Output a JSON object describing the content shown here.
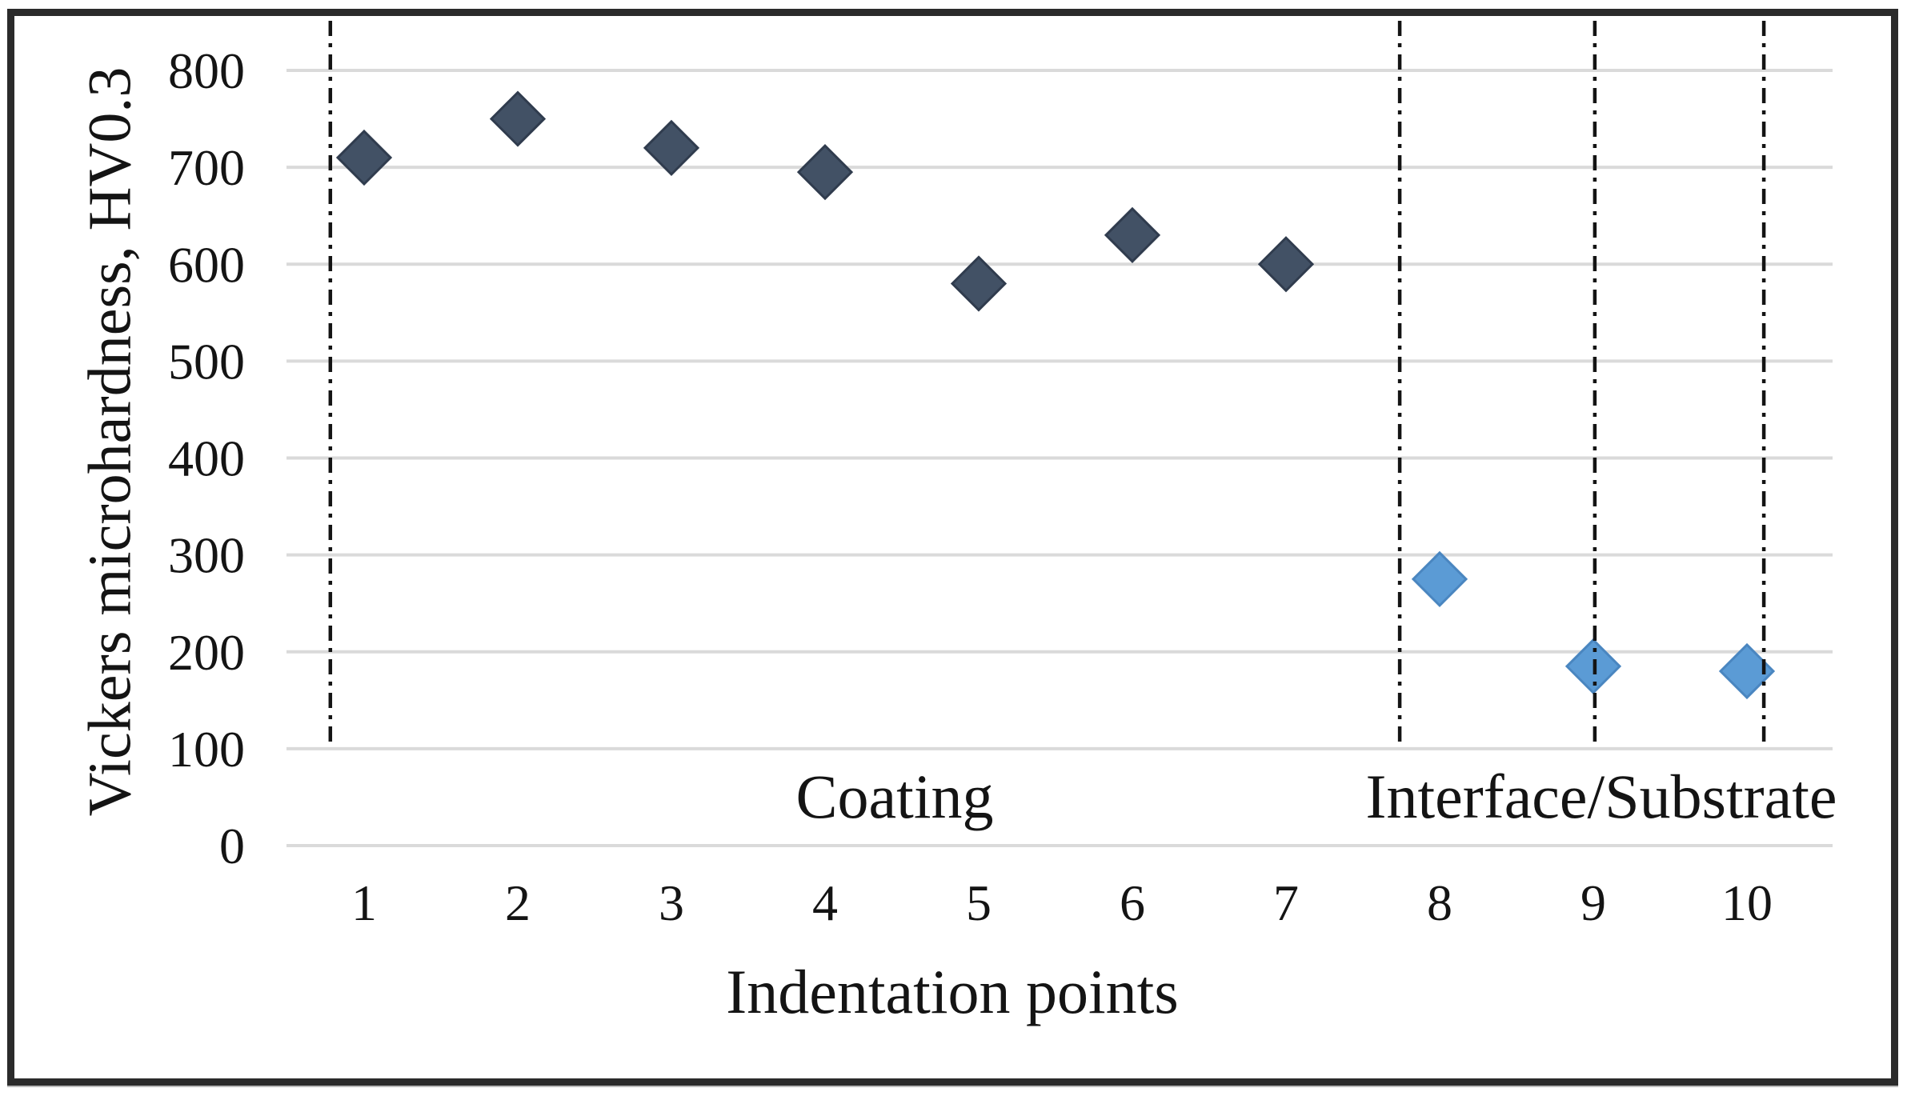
{
  "figure": {
    "background": "#FFFFFF",
    "border_color": "#2B2B2B"
  },
  "chart_data": {
    "type": "scatter",
    "marker": "diamond",
    "title": "",
    "xlabel": "Indentation points",
    "ylabel": "Vickers microhardness, HV0.3",
    "x_ticks": [
      "1",
      "2",
      "3",
      "4",
      "5",
      "6",
      "7",
      "8",
      "9",
      "10"
    ],
    "y_ticks": [
      0,
      100,
      200,
      300,
      400,
      500,
      600,
      700,
      800
    ],
    "ylim": [
      0,
      850
    ],
    "xlim": [
      0.5,
      10.55
    ],
    "grid": "horizontal",
    "legend_position": "none",
    "grid_color": "#DADADA",
    "divider_color": "#141414",
    "text_color": "#141414",
    "series": [
      {
        "name": "Coating",
        "color": "#425165",
        "edge_color": "#303C4E",
        "points": [
          {
            "x": 1,
            "y": 710
          },
          {
            "x": 2,
            "y": 750
          },
          {
            "x": 3,
            "y": 720
          },
          {
            "x": 4,
            "y": 695
          },
          {
            "x": 5,
            "y": 580
          },
          {
            "x": 6,
            "y": 630
          },
          {
            "x": 7,
            "y": 600
          }
        ]
      },
      {
        "name": "Interface/Substrate",
        "color": "#5B9BD5",
        "edge_color": "#4A86C0",
        "points": [
          {
            "x": 8,
            "y": 275
          },
          {
            "x": 9,
            "y": 185
          },
          {
            "x": 10,
            "y": 180
          }
        ]
      }
    ],
    "region_labels": [
      {
        "text": "Coating"
      },
      {
        "text": "Interface/Substrate"
      }
    ],
    "divider_lines_x": [
      0.78,
      7.74,
      9.01,
      10.11
    ]
  }
}
